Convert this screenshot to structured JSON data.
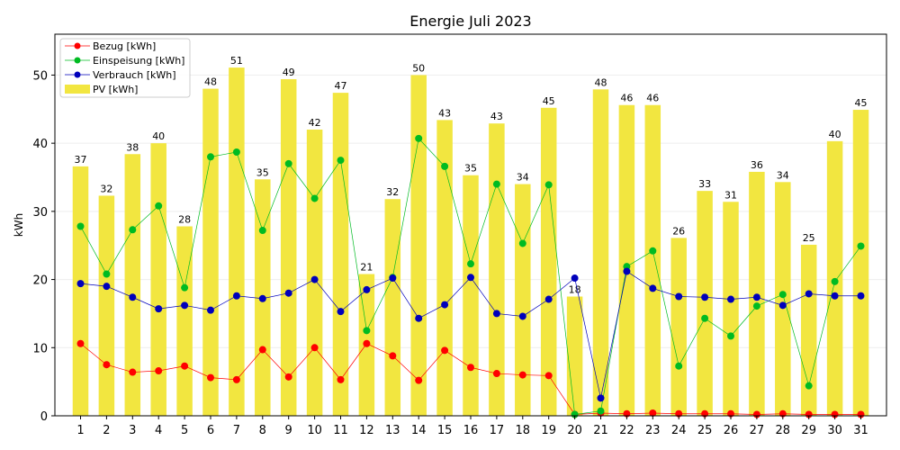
{
  "chart_data": {
    "type": "bar",
    "title": "Energie Juli 2023",
    "xlabel": "",
    "ylabel": "kWh",
    "ylim": [
      0,
      56
    ],
    "yticks": [
      0,
      10,
      20,
      30,
      40,
      50
    ],
    "grid": "horizontal",
    "legend_position": "top-left",
    "categories": [
      "1",
      "2",
      "3",
      "4",
      "5",
      "6",
      "7",
      "8",
      "9",
      "10",
      "11",
      "12",
      "13",
      "14",
      "15",
      "16",
      "17",
      "18",
      "19",
      "20",
      "21",
      "22",
      "23",
      "24",
      "25",
      "26",
      "27",
      "28",
      "29",
      "30",
      "31"
    ],
    "bars": {
      "name": "PV [kWh]",
      "color": "#f2e640",
      "values": [
        36.6,
        32.3,
        38.4,
        40.0,
        27.8,
        48.0,
        51.1,
        34.7,
        49.4,
        42.0,
        47.4,
        20.8,
        31.8,
        50.0,
        43.4,
        35.3,
        42.9,
        34.0,
        45.2,
        17.5,
        47.9,
        45.6,
        45.6,
        26.1,
        33.0,
        31.4,
        35.8,
        34.3,
        25.1,
        40.3,
        44.9
      ],
      "labels": [
        "37",
        "32",
        "38",
        "40",
        "28",
        "48",
        "51",
        "35",
        "49",
        "42",
        "47",
        "21",
        "32",
        "50",
        "43",
        "35",
        "43",
        "34",
        "45",
        "18",
        "48",
        "46",
        "46",
        "26",
        "33",
        "31",
        "36",
        "34",
        "25",
        "40",
        "45"
      ]
    },
    "series": [
      {
        "name": "Bezug [kWh]",
        "color": "#ff0000",
        "values": [
          10.6,
          7.5,
          6.4,
          6.6,
          7.3,
          5.6,
          5.3,
          9.7,
          5.7,
          10.0,
          5.3,
          10.6,
          8.8,
          5.2,
          9.6,
          7.1,
          6.2,
          6.0,
          5.9,
          0.2,
          0.4,
          0.3,
          0.4,
          0.3,
          0.3,
          0.3,
          0.2,
          0.3,
          0.2,
          0.2,
          0.2
        ]
      },
      {
        "name": "Einspeisung [kWh]",
        "color": "#00bb22",
        "values": [
          27.8,
          20.8,
          27.3,
          30.8,
          18.8,
          38.0,
          38.7,
          27.2,
          37.0,
          31.9,
          37.5,
          12.5,
          20.3,
          40.7,
          36.6,
          22.3,
          34.0,
          25.3,
          33.9,
          0.2,
          0.7,
          21.9,
          24.2,
          7.3,
          14.3,
          11.7,
          16.1,
          17.8,
          4.4,
          19.7,
          24.9
        ]
      },
      {
        "name": "Verbrauch [kWh]",
        "color": "#0000bb",
        "values": [
          19.4,
          19.0,
          17.4,
          15.7,
          16.2,
          15.5,
          17.6,
          17.2,
          18.0,
          20.0,
          15.3,
          18.5,
          20.2,
          14.3,
          16.3,
          20.3,
          15.0,
          14.6,
          17.1,
          20.2,
          2.6,
          21.2,
          18.7,
          17.5,
          17.4,
          17.1,
          17.4,
          16.2,
          17.9,
          17.6,
          17.6
        ]
      }
    ]
  }
}
